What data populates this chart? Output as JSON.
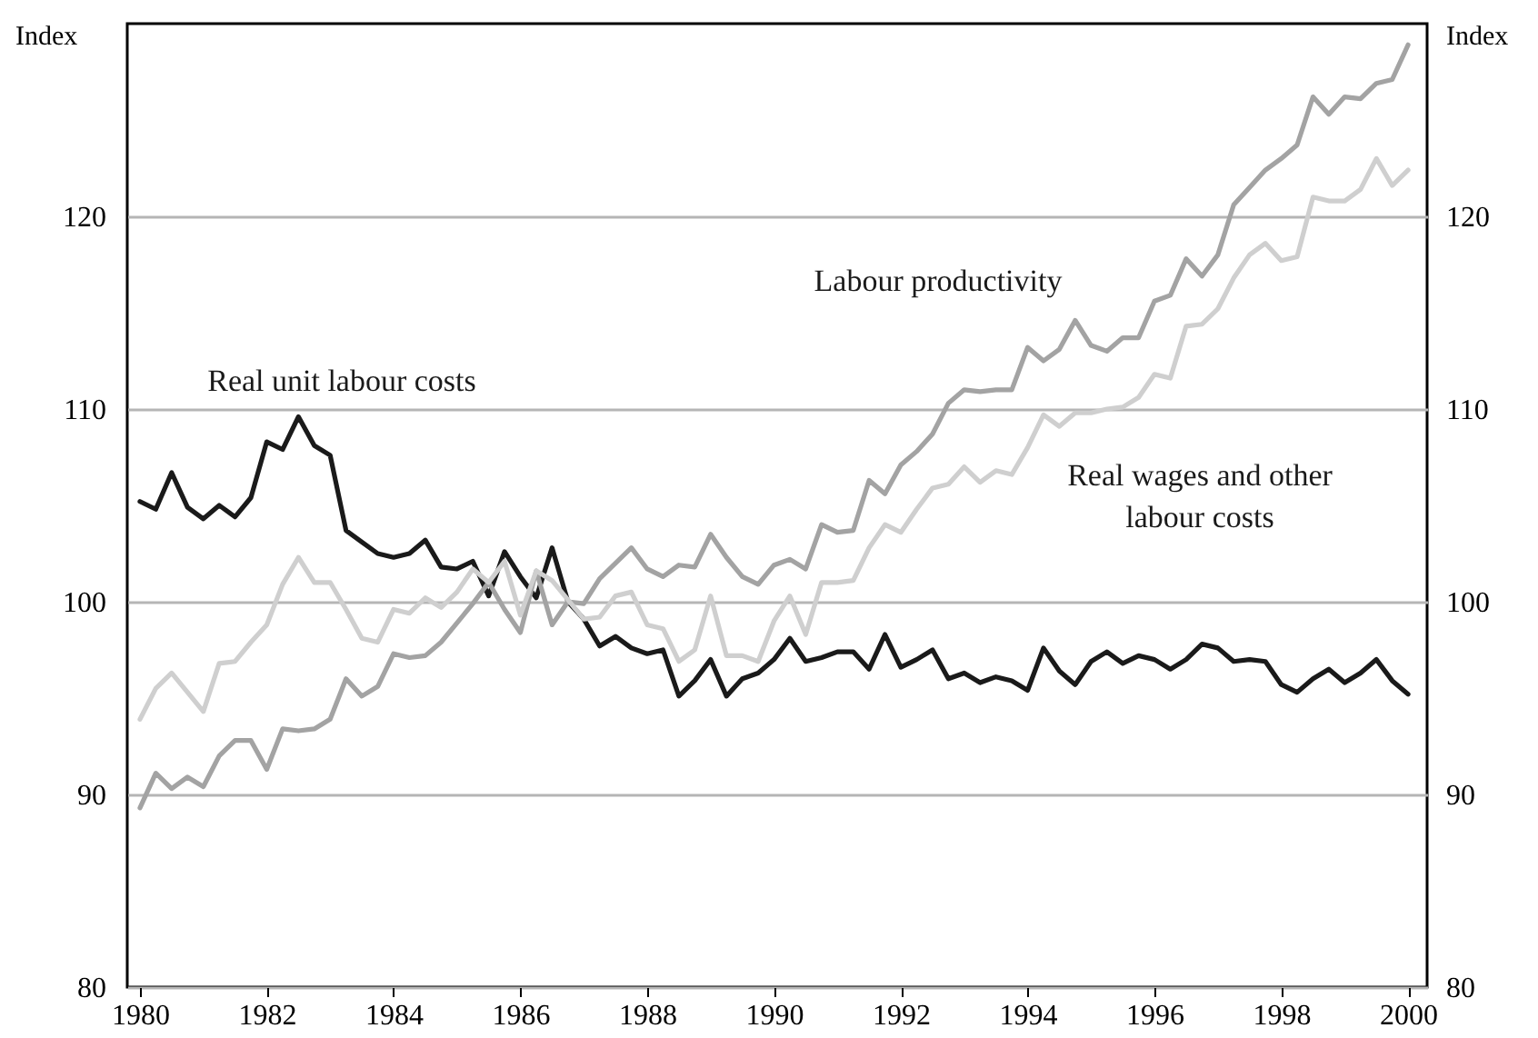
{
  "chart_data": {
    "type": "line",
    "x": [
      1980,
      1980.25,
      1980.5,
      1980.75,
      1981,
      1981.25,
      1981.5,
      1981.75,
      1982,
      1982.25,
      1982.5,
      1982.75,
      1983,
      1983.25,
      1983.5,
      1983.75,
      1984,
      1984.25,
      1984.5,
      1984.75,
      1985,
      1985.25,
      1985.5,
      1985.75,
      1986,
      1986.25,
      1986.5,
      1986.75,
      1987,
      1987.25,
      1987.5,
      1987.75,
      1988,
      1988.25,
      1988.5,
      1988.75,
      1989,
      1989.25,
      1989.5,
      1989.75,
      1990,
      1990.25,
      1990.5,
      1990.75,
      1991,
      1991.25,
      1991.5,
      1991.75,
      1992,
      1992.25,
      1992.5,
      1992.75,
      1993,
      1993.25,
      1993.5,
      1993.75,
      1994,
      1994.25,
      1994.5,
      1994.75,
      1995,
      1995.25,
      1995.5,
      1995.75,
      1996,
      1996.25,
      1996.5,
      1996.75,
      1997,
      1997.25,
      1997.5,
      1997.75,
      1998,
      1998.25,
      1998.5,
      1998.75,
      1999,
      1999.25,
      1999.5,
      1999.75,
      2000
    ],
    "series": [
      {
        "name": "Real unit labour costs",
        "color": "#1a1a1a",
        "values": [
          105.2,
          104.8,
          106.7,
          104.9,
          104.3,
          105.0,
          104.4,
          105.4,
          108.3,
          107.9,
          109.6,
          108.1,
          107.6,
          103.7,
          103.1,
          102.5,
          102.3,
          102.5,
          103.2,
          101.8,
          101.7,
          102.1,
          100.3,
          102.6,
          101.3,
          100.2,
          102.8,
          100.0,
          99.1,
          97.7,
          98.2,
          97.6,
          97.3,
          97.5,
          95.1,
          95.9,
          97.0,
          95.1,
          96.0,
          96.3,
          97.0,
          98.1,
          96.9,
          97.1,
          97.4,
          97.4,
          96.5,
          98.3,
          96.6,
          97.0,
          97.5,
          96.0,
          96.3,
          95.8,
          96.1,
          95.9,
          95.4,
          97.6,
          96.4,
          95.7,
          96.9,
          97.4,
          96.8,
          97.2,
          97.0,
          96.5,
          97.0,
          97.8,
          97.6,
          96.9,
          97.0,
          96.9,
          95.7,
          95.3,
          96.0,
          96.5,
          95.8,
          96.3,
          97.0,
          95.9,
          95.2
        ]
      },
      {
        "name": "Labour productivity",
        "color": "#a3a3a3",
        "values": [
          89.3,
          91.1,
          90.3,
          90.9,
          90.4,
          92.0,
          92.8,
          92.8,
          91.3,
          93.4,
          93.3,
          93.4,
          93.9,
          96.0,
          95.1,
          95.6,
          97.3,
          97.1,
          97.2,
          97.9,
          98.9,
          99.9,
          101.0,
          99.6,
          98.4,
          101.6,
          98.8,
          100.0,
          99.9,
          101.2,
          102.0,
          102.8,
          101.7,
          101.3,
          101.9,
          101.8,
          103.5,
          102.3,
          101.3,
          100.9,
          101.9,
          102.2,
          101.7,
          104.0,
          103.6,
          103.7,
          106.3,
          105.6,
          107.1,
          107.8,
          108.7,
          110.3,
          111.0,
          110.9,
          111.0,
          111.0,
          113.2,
          112.5,
          113.1,
          114.6,
          113.3,
          113.0,
          113.7,
          113.7,
          115.6,
          115.9,
          117.8,
          116.9,
          118.0,
          120.6,
          121.5,
          122.4,
          123.0,
          123.7,
          126.2,
          125.3,
          126.2,
          126.1,
          126.9,
          127.1,
          128.9
        ]
      },
      {
        "name": "Real wages and other labour costs",
        "color": "#cfcfcf",
        "values": [
          93.9,
          95.5,
          96.3,
          95.3,
          94.3,
          96.8,
          96.9,
          97.9,
          98.8,
          100.9,
          102.3,
          101.0,
          101.0,
          99.6,
          98.1,
          97.9,
          99.6,
          99.4,
          100.2,
          99.7,
          100.5,
          101.7,
          101.0,
          102.1,
          99.3,
          101.6,
          101.1,
          100.1,
          99.1,
          99.2,
          100.3,
          100.5,
          98.8,
          98.6,
          96.9,
          97.5,
          100.3,
          97.2,
          97.2,
          96.9,
          99.0,
          100.3,
          98.3,
          101.0,
          101.0,
          101.1,
          102.8,
          104.0,
          103.6,
          104.8,
          105.9,
          106.1,
          107.0,
          106.2,
          106.8,
          106.6,
          108.0,
          109.7,
          109.1,
          109.8,
          109.8,
          110.0,
          110.1,
          110.6,
          111.8,
          111.6,
          114.3,
          114.4,
          115.2,
          116.8,
          118.0,
          118.6,
          117.7,
          117.9,
          121.0,
          120.8,
          120.8,
          121.4,
          123.0,
          121.6,
          122.4
        ]
      }
    ],
    "ylabel": "Index",
    "y2label": "Index",
    "xlim": [
      1979.8,
      2000.3
    ],
    "xticks": [
      1980,
      1982,
      1984,
      1986,
      1988,
      1990,
      1992,
      1994,
      1996,
      1998,
      2000
    ],
    "ylim": [
      80,
      130
    ],
    "yticks": [
      80,
      90,
      100,
      110,
      120
    ],
    "y2lim": [
      80,
      130
    ],
    "y2ticks": [
      80,
      90,
      100,
      110,
      120
    ],
    "grid": "y",
    "marker": "none",
    "line_style": "solid"
  }
}
